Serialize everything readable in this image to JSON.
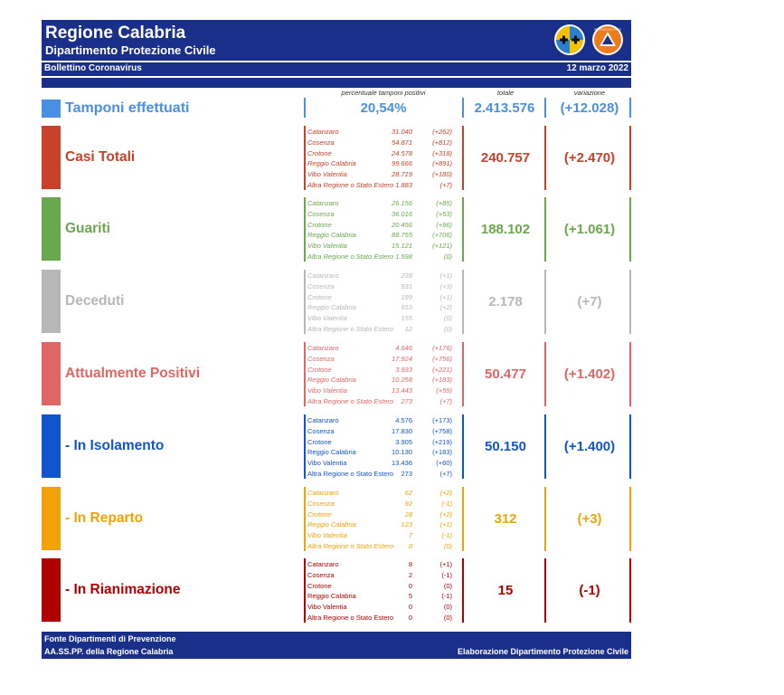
{
  "header": {
    "title": "Regione Calabria",
    "subtitle": "Dipartimento Protezione Civile",
    "bulletin": "Bollettino Coronavirus",
    "date": "12 marzo 2022",
    "logo_text": "PROTEZIONE CIVILE"
  },
  "columns": {
    "percent_header": "percentuale tamponi positivi",
    "total_header": "totale",
    "variation_header": "variazione"
  },
  "tamponi": {
    "label": "Tamponi effettuati",
    "percent": "20,54%",
    "total": "2.413.576",
    "variation": "(+12.028)",
    "color": "#4a90e2"
  },
  "categories": [
    {
      "label": "Casi Totali",
      "color": "#c8412a",
      "total": "240.757",
      "variation": "(+2.470)",
      "rows": [
        {
          "name": "Catanzaro",
          "value": "31.040",
          "delta": "(+262)"
        },
        {
          "name": "Cosenza",
          "value": "54.871",
          "delta": "(+812)"
        },
        {
          "name": "Crotone",
          "value": "24.578",
          "delta": "(+318)"
        },
        {
          "name": "Reggio Calabria",
          "value": "99.666",
          "delta": "(+891)"
        },
        {
          "name": "Vibo Valentia",
          "value": "28.719",
          "delta": "(+180)"
        },
        {
          "name": "Altra Regione o Stato Estero",
          "value": "1.883",
          "delta": "(+7)"
        }
      ]
    },
    {
      "label": "Guariti",
      "color": "#6aa84f",
      "total": "188.102",
      "variation": "(+1.061)",
      "rows": [
        {
          "name": "Catanzaro",
          "value": "26.156",
          "delta": "(+85)"
        },
        {
          "name": "Cosenza",
          "value": "36.016",
          "delta": "(+53)"
        },
        {
          "name": "Crotone",
          "value": "20.456",
          "delta": "(+96)"
        },
        {
          "name": "Reggio Calabria",
          "value": "88.755",
          "delta": "(+706)"
        },
        {
          "name": "Vibo Valentia",
          "value": "15.121",
          "delta": "(+121)"
        },
        {
          "name": "Altra Regione o Stato Estero",
          "value": "1.598",
          "delta": "(0)"
        }
      ]
    },
    {
      "label": "Deceduti",
      "color": "#b7b7b7",
      "total": "2.178",
      "variation": "(+7)",
      "rows": [
        {
          "name": "Catanzaro",
          "value": "238",
          "delta": "(+1)"
        },
        {
          "name": "Cosenza",
          "value": "931",
          "delta": "(+3)"
        },
        {
          "name": "Crotone",
          "value": "189",
          "delta": "(+1)"
        },
        {
          "name": "Reggio Calabria",
          "value": "653",
          "delta": "(+2)"
        },
        {
          "name": "Vibo Valentia",
          "value": "155",
          "delta": "(0)"
        },
        {
          "name": "Altra Regione o Stato Estero",
          "value": "12",
          "delta": "(0)"
        }
      ]
    },
    {
      "label": "Attualmente Positivi",
      "color": "#e06666",
      "total": "50.477",
      "variation": "(+1.402)",
      "rows": [
        {
          "name": "Catanzaro",
          "value": "4.646",
          "delta": "(+176)"
        },
        {
          "name": "Cosenza",
          "value": "17.924",
          "delta": "(+756)"
        },
        {
          "name": "Crotone",
          "value": "3.933",
          "delta": "(+221)"
        },
        {
          "name": "Reggio Calabria",
          "value": "10.258",
          "delta": "(+183)"
        },
        {
          "name": "Vibo Valentia",
          "value": "13.443",
          "delta": "(+59)"
        },
        {
          "name": "Altra Regione o Stato Estero",
          "value": "273",
          "delta": "(+7)"
        }
      ]
    },
    {
      "label": "- In Isolamento",
      "color": "#1155cc",
      "total": "50.150",
      "variation": "(+1.400)",
      "rows": [
        {
          "name": "Catanzaro",
          "value": "4.576",
          "delta": "(+173)"
        },
        {
          "name": "Cosenza",
          "value": "17.830",
          "delta": "(+758)"
        },
        {
          "name": "Crotone",
          "value": "3.905",
          "delta": "(+219)"
        },
        {
          "name": "Reggio Calabria",
          "value": "10.130",
          "delta": "(+183)"
        },
        {
          "name": "Vibo Valentia",
          "value": "13.436",
          "delta": "(+60)"
        },
        {
          "name": "Altra Regione o Stato Estero",
          "value": "273",
          "delta": "(+7)"
        }
      ]
    },
    {
      "label": "- In Reparto",
      "color": "#f1a208",
      "total": "312",
      "variation": "(+3)",
      "rows": [
        {
          "name": "Catanzaro",
          "value": "62",
          "delta": "(+2)"
        },
        {
          "name": "Cosenza",
          "value": "92",
          "delta": "(-1)"
        },
        {
          "name": "Crotone",
          "value": "28",
          "delta": "(+2)"
        },
        {
          "name": "Reggio Calabria",
          "value": "123",
          "delta": "(+1)"
        },
        {
          "name": "Vibo Valentia",
          "value": "7",
          "delta": "(-1)"
        },
        {
          "name": "Altra Regione o Stato Estero",
          "value": "0",
          "delta": "(0)"
        }
      ]
    },
    {
      "label": "- In Rianimazione",
      "color": "#b00000",
      "total": "15",
      "variation": "(-1)",
      "rows": [
        {
          "name": "Catanzaro",
          "value": "8",
          "delta": "(+1)"
        },
        {
          "name": "Cosenza",
          "value": "2",
          "delta": "(-1)"
        },
        {
          "name": "Crotone",
          "value": "0",
          "delta": "(0)"
        },
        {
          "name": "Reggio Calabria",
          "value": "5",
          "delta": "(-1)"
        },
        {
          "name": "Vibo Valentia",
          "value": "0",
          "delta": "(0)"
        },
        {
          "name": "Altra Regione o Stato Estero",
          "value": "0",
          "delta": "(0)"
        }
      ]
    }
  ],
  "footer": {
    "line1": "Fonte Dipartimenti di Prevenzione",
    "line2": "AA.SS.PP.  della Regione Calabria",
    "right": "Elaborazione Dipartimento Protezione Civile"
  }
}
